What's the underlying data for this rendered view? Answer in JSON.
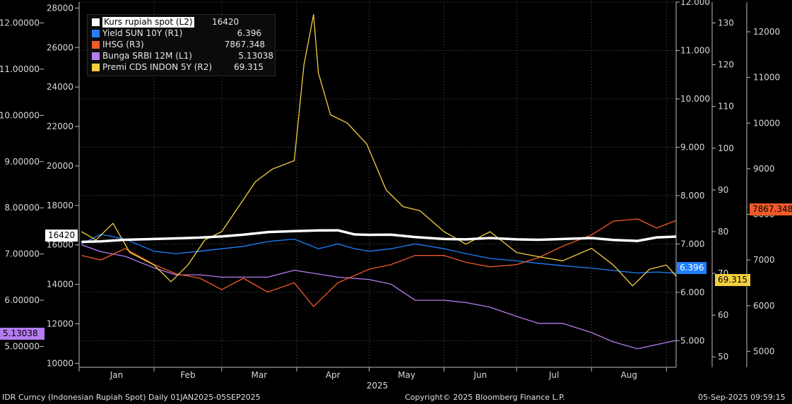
{
  "chart_data": {
    "type": "line",
    "x_range": [
      "2025-01-01",
      "2025-09-05"
    ],
    "x_ticks": [
      "Jan",
      "Feb",
      "Mar",
      "Apr",
      "May",
      "Jun",
      "Jul",
      "Aug"
    ],
    "x_year": "2025",
    "axes": {
      "L1": {
        "side": "left",
        "ticks": [
          "12.00000",
          "11.00000",
          "10.00000",
          "9.00000",
          "8.00000",
          "7.00000",
          "6.00000",
          "5.00000"
        ],
        "range": [
          4.55,
          12.45
        ]
      },
      "L2": {
        "side": "left",
        "ticks": [
          "28000",
          "26000",
          "24000",
          "22000",
          "20000",
          "18000",
          "16000",
          "14000",
          "12000",
          "10000"
        ],
        "range": [
          9800,
          28300
        ]
      },
      "R1": {
        "side": "right",
        "ticks": [
          "12.000",
          "11.000",
          "10.000",
          "9.000",
          "8.000",
          "7.000",
          "6.000",
          "5.000"
        ],
        "range": [
          4.45,
          12.0
        ]
      },
      "R2": {
        "side": "right",
        "ticks": [
          "130",
          "120",
          "110",
          "100",
          "90",
          "80",
          "70",
          "60",
          "50"
        ],
        "range": [
          47.5,
          135
        ]
      },
      "R3": {
        "side": "right",
        "ticks": [
          "12000",
          "11000",
          "10000",
          "9000",
          "8000",
          "7000",
          "6000",
          "5000"
        ],
        "range": [
          4650,
          12650
        ]
      }
    },
    "series": [
      {
        "name": "Kurs rupiah spot (L2)",
        "axis": "L2",
        "color": "#ffffff",
        "last": "16420",
        "points": [
          [
            "2025-01-02",
            16150
          ],
          [
            "2025-01-10",
            16180
          ],
          [
            "2025-01-20",
            16260
          ],
          [
            "2025-02-01",
            16300
          ],
          [
            "2025-02-10",
            16330
          ],
          [
            "2025-02-20",
            16370
          ],
          [
            "2025-03-01",
            16430
          ],
          [
            "2025-03-10",
            16520
          ],
          [
            "2025-03-20",
            16650
          ],
          [
            "2025-03-31",
            16700
          ],
          [
            "2025-04-10",
            16730
          ],
          [
            "2025-04-18",
            16740
          ],
          [
            "2025-04-25",
            16530
          ],
          [
            "2025-05-01",
            16510
          ],
          [
            "2025-05-10",
            16520
          ],
          [
            "2025-05-20",
            16400
          ],
          [
            "2025-06-01",
            16300
          ],
          [
            "2025-06-10",
            16280
          ],
          [
            "2025-06-20",
            16350
          ],
          [
            "2025-07-01",
            16280
          ],
          [
            "2025-07-10",
            16260
          ],
          [
            "2025-07-20",
            16300
          ],
          [
            "2025-08-01",
            16350
          ],
          [
            "2025-08-10",
            16250
          ],
          [
            "2025-08-20",
            16200
          ],
          [
            "2025-08-28",
            16380
          ],
          [
            "2025-09-05",
            16420
          ]
        ]
      },
      {
        "name": "Yield SUN 10Y (R1)",
        "axis": "R1",
        "color": "#1f7fff",
        "last": "6.396",
        "points": [
          [
            "2025-01-02",
            7.0
          ],
          [
            "2025-01-10",
            7.2
          ],
          [
            "2025-01-20",
            7.1
          ],
          [
            "2025-02-01",
            6.85
          ],
          [
            "2025-02-10",
            6.8
          ],
          [
            "2025-02-20",
            6.85
          ],
          [
            "2025-03-01",
            6.9
          ],
          [
            "2025-03-10",
            6.95
          ],
          [
            "2025-03-20",
            7.05
          ],
          [
            "2025-03-31",
            7.1
          ],
          [
            "2025-04-10",
            6.9
          ],
          [
            "2025-04-18",
            7.0
          ],
          [
            "2025-04-25",
            6.9
          ],
          [
            "2025-05-01",
            6.85
          ],
          [
            "2025-05-10",
            6.9
          ],
          [
            "2025-05-20",
            7.0
          ],
          [
            "2025-06-01",
            6.9
          ],
          [
            "2025-06-10",
            6.8
          ],
          [
            "2025-06-20",
            6.7
          ],
          [
            "2025-07-01",
            6.65
          ],
          [
            "2025-07-10",
            6.6
          ],
          [
            "2025-07-20",
            6.55
          ],
          [
            "2025-08-01",
            6.5
          ],
          [
            "2025-08-10",
            6.45
          ],
          [
            "2025-08-20",
            6.4
          ],
          [
            "2025-08-28",
            6.42
          ],
          [
            "2025-09-05",
            6.396
          ]
        ]
      },
      {
        "name": "IHSG (R3)",
        "axis": "R3",
        "color": "#f05a28",
        "last": "7867.348",
        "points": [
          [
            "2025-01-02",
            7100
          ],
          [
            "2025-01-10",
            7000
          ],
          [
            "2025-01-20",
            7250
          ],
          [
            "2025-02-01",
            6900
          ],
          [
            "2025-02-10",
            6700
          ],
          [
            "2025-02-20",
            6600
          ],
          [
            "2025-03-01",
            6350
          ],
          [
            "2025-03-10",
            6600
          ],
          [
            "2025-03-20",
            6300
          ],
          [
            "2025-03-31",
            6500
          ],
          [
            "2025-04-08",
            5980
          ],
          [
            "2025-04-18",
            6500
          ],
          [
            "2025-05-01",
            6800
          ],
          [
            "2025-05-10",
            6900
          ],
          [
            "2025-05-20",
            7100
          ],
          [
            "2025-06-01",
            7100
          ],
          [
            "2025-06-10",
            6950
          ],
          [
            "2025-06-20",
            6850
          ],
          [
            "2025-07-01",
            6900
          ],
          [
            "2025-07-10",
            7050
          ],
          [
            "2025-07-20",
            7300
          ],
          [
            "2025-08-01",
            7550
          ],
          [
            "2025-08-10",
            7850
          ],
          [
            "2025-08-20",
            7900
          ],
          [
            "2025-08-28",
            7700
          ],
          [
            "2025-09-05",
            7867.348
          ]
        ]
      },
      {
        "name": "Bunga SRBI 12M (L1)",
        "axis": "L1",
        "color": "#b57cf0",
        "last": "5.13038",
        "points": [
          [
            "2025-01-02",
            7.2
          ],
          [
            "2025-01-10",
            7.05
          ],
          [
            "2025-01-20",
            6.95
          ],
          [
            "2025-02-01",
            6.7
          ],
          [
            "2025-02-10",
            6.55
          ],
          [
            "2025-02-20",
            6.55
          ],
          [
            "2025-03-01",
            6.5
          ],
          [
            "2025-03-20",
            6.5
          ],
          [
            "2025-03-31",
            6.65
          ],
          [
            "2025-04-18",
            6.5
          ],
          [
            "2025-05-01",
            6.45
          ],
          [
            "2025-05-10",
            6.35
          ],
          [
            "2025-05-20",
            6.0
          ],
          [
            "2025-06-01",
            6.0
          ],
          [
            "2025-06-10",
            5.95
          ],
          [
            "2025-06-20",
            5.85
          ],
          [
            "2025-07-01",
            5.65
          ],
          [
            "2025-07-10",
            5.5
          ],
          [
            "2025-07-20",
            5.5
          ],
          [
            "2025-08-01",
            5.3
          ],
          [
            "2025-08-10",
            5.1
          ],
          [
            "2025-08-20",
            4.95
          ],
          [
            "2025-09-05",
            5.13038
          ]
        ]
      },
      {
        "name": "Premi CDS INDON 5Y (R2)",
        "axis": "R2",
        "color": "#f4d03f",
        "last": "69.315",
        "points": [
          [
            "2025-01-02",
            80
          ],
          [
            "2025-01-08",
            78
          ],
          [
            "2025-01-15",
            82
          ],
          [
            "2025-01-22",
            75
          ],
          [
            "2025-02-01",
            72
          ],
          [
            "2025-02-08",
            68
          ],
          [
            "2025-02-15",
            72
          ],
          [
            "2025-02-22",
            78
          ],
          [
            "2025-03-01",
            80
          ],
          [
            "2025-03-08",
            86
          ],
          [
            "2025-03-15",
            92
          ],
          [
            "2025-03-22",
            95
          ],
          [
            "2025-03-31",
            97
          ],
          [
            "2025-04-04",
            120
          ],
          [
            "2025-04-08",
            132
          ],
          [
            "2025-04-10",
            118
          ],
          [
            "2025-04-15",
            108
          ],
          [
            "2025-04-22",
            106
          ],
          [
            "2025-04-30",
            101
          ],
          [
            "2025-05-08",
            90
          ],
          [
            "2025-05-15",
            86
          ],
          [
            "2025-05-22",
            85
          ],
          [
            "2025-06-01",
            80
          ],
          [
            "2025-06-10",
            77
          ],
          [
            "2025-06-20",
            80
          ],
          [
            "2025-07-01",
            75
          ],
          [
            "2025-07-10",
            74
          ],
          [
            "2025-07-20",
            73
          ],
          [
            "2025-08-01",
            76
          ],
          [
            "2025-08-10",
            72
          ],
          [
            "2025-08-18",
            67
          ],
          [
            "2025-08-25",
            71
          ],
          [
            "2025-09-01",
            72
          ],
          [
            "2025-09-05",
            69.315
          ]
        ]
      }
    ]
  },
  "tags": {
    "left": {
      "l2_value": "16420",
      "l1_value": "5.13038"
    },
    "right": {
      "r1_value": "6.396",
      "r2_value": "69.315",
      "r3_value": "7867.348"
    }
  },
  "legend": {
    "kurs": {
      "name": "Kurs rupiah spot (L2)",
      "value": "16420"
    },
    "yield": {
      "name": "Yield SUN 10Y (R1)",
      "value": "6.396"
    },
    "ihsg": {
      "name": "IHSG (R3)",
      "value": "7867.348"
    },
    "srbi": {
      "name": "Bunga SRBI 12M (L1)",
      "value": "5.13038"
    },
    "cds": {
      "name": "Premi CDS INDON 5Y (R2)",
      "value": "69.315"
    }
  },
  "colors": {
    "kurs": "#ffffff",
    "yield": "#1f7fff",
    "ihsg": "#f05a28",
    "srbi": "#b57cf0",
    "cds": "#f4d03f"
  },
  "footer": {
    "ticker": "IDR Curncy (Indonesian Rupiah Spot)  Daily 01JAN2025-05SEP2025",
    "copyright": "Copyright© 2025 Bloomberg Finance L.P.",
    "timestamp": "05-Sep-2025 09:59:15"
  }
}
